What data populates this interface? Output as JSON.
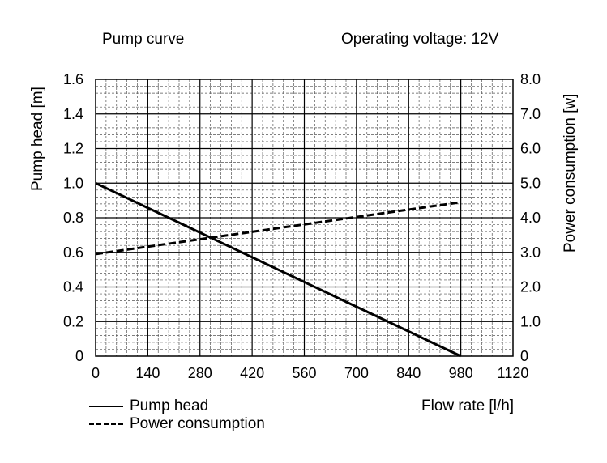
{
  "chart_data": {
    "type": "line",
    "title": "Pump curve",
    "subtitle": "Operating voltage: 12V",
    "xlabel": "Flow rate [l/h]",
    "ylabel": "Pump head [m]",
    "y2label": "Power consumption [w]",
    "xlim": [
      0,
      1120
    ],
    "ylim": [
      0,
      1.6
    ],
    "y2lim": [
      0,
      8.0
    ],
    "x_ticks": [
      "0",
      "140",
      "280",
      "420",
      "560",
      "700",
      "840",
      "980",
      "1120"
    ],
    "y_ticks": [
      "0",
      "0.2",
      "0.4",
      "0.6",
      "0.8",
      "1.0",
      "1.2",
      "1.4",
      "1.6"
    ],
    "y2_ticks": [
      "0",
      "1.0",
      "2.0",
      "3.0",
      "4.0",
      "5.0",
      "6.0",
      "7.0",
      "8.0"
    ],
    "grid": true,
    "legend_position": "bottom-left",
    "series": [
      {
        "name": "Pump head",
        "axis": "left",
        "style": "solid",
        "x": [
          0,
          980
        ],
        "y": [
          1.0,
          0.0
        ]
      },
      {
        "name": "Power consumption",
        "axis": "right",
        "style": "dashed",
        "x": [
          0,
          980
        ],
        "y": [
          2.95,
          4.45
        ]
      }
    ]
  }
}
